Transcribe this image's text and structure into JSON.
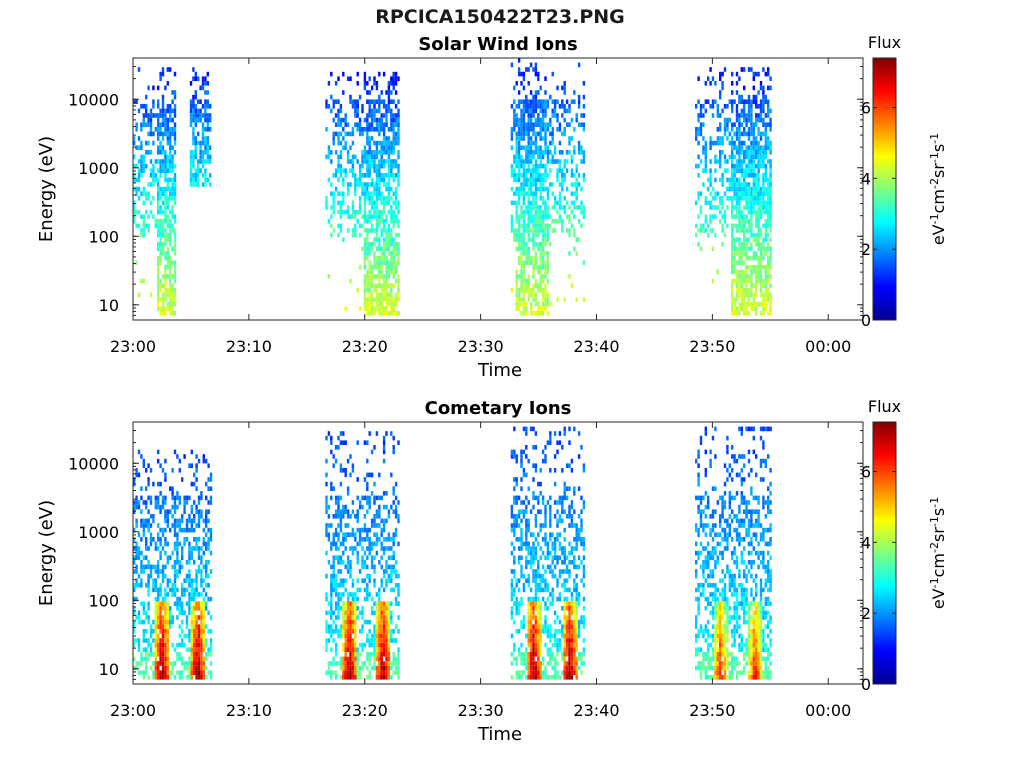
{
  "title": "RPCICA150422T23.PNG",
  "panels": [
    {
      "subtitle": "Solar Wind Ions",
      "xlabel": "Time",
      "ylabel": "Energy (eV)"
    },
    {
      "subtitle": "Cometary Ions",
      "xlabel": "Time",
      "ylabel": "Energy (eV)"
    }
  ],
  "colorbar": {
    "label": "Flux",
    "unit_text": "eV-1cm-2sr-1s-1",
    "ticks": [
      "0",
      "2",
      "4",
      "6"
    ],
    "range": [
      0,
      7.4
    ],
    "colormap": [
      "#00008f",
      "#0000ff",
      "#00ffff",
      "#ffff00",
      "#ff0000",
      "#800000"
    ]
  },
  "chart_data": [
    {
      "type": "heatmap",
      "title": "Solar Wind Ions",
      "xlabel": "Time",
      "ylabel": "Energy (eV)",
      "xlim": [
        "23:00",
        "00:03"
      ],
      "xticks": [
        "23:00",
        "23:10",
        "23:20",
        "23:30",
        "23:40",
        "23:50",
        "00:00"
      ],
      "ylim": [
        6,
        40000
      ],
      "yscale": "log",
      "yticks": [
        "10",
        "100",
        "1000",
        "10000"
      ],
      "grid": false,
      "note": "Energy-time spectrogram; four ion bursts around 23:00-23:07, 23:17-23:23, 23:33-23:39, 23:48-23:55",
      "bursts": [
        {
          "start_min": 0.0,
          "end_min": 3.7,
          "emin": 6,
          "emax": 30000,
          "core_start_min": 2.0,
          "core_end_min": 3.6,
          "peak_flux": 4
        },
        {
          "start_min": 4.9,
          "end_min": 6.7,
          "emin": 500,
          "emax": 30000,
          "core_start_min": 4.9,
          "core_end_min": 6.7,
          "peak_flux": 2
        },
        {
          "start_min": 16.6,
          "end_min": 23.0,
          "emin": 6,
          "emax": 25000,
          "core_start_min": 19.9,
          "core_end_min": 22.9,
          "peak_flux": 4
        },
        {
          "start_min": 32.6,
          "end_min": 38.9,
          "emin": 6,
          "emax": 38000,
          "core_start_min": 33.0,
          "core_end_min": 35.8,
          "peak_flux": 4
        },
        {
          "start_min": 48.5,
          "end_min": 55.1,
          "emin": 6,
          "emax": 30000,
          "core_start_min": 51.5,
          "core_end_min": 55.0,
          "peak_flux": 4
        }
      ]
    },
    {
      "type": "heatmap",
      "title": "Cometary Ions",
      "xlabel": "Time",
      "ylabel": "Energy (eV)",
      "xlim": [
        "23:00",
        "00:03"
      ],
      "xticks": [
        "23:00",
        "23:10",
        "23:20",
        "23:30",
        "23:40",
        "23:50",
        "00:00"
      ],
      "ylim": [
        6,
        40000
      ],
      "yscale": "log",
      "yticks": [
        "10",
        "100",
        "1000",
        "10000"
      ],
      "grid": false,
      "note": "Energy-time spectrogram; strong low-energy (<100 eV) vertical streaks within each burst",
      "bursts": [
        {
          "start_min": 0.0,
          "end_min": 6.7,
          "emin": 6,
          "emax": 15000,
          "peaks_min": [
            2.4,
            5.5
          ],
          "peak_flux": 7
        },
        {
          "start_min": 16.6,
          "end_min": 23.0,
          "emin": 6,
          "emax": 30000,
          "peaks_min": [
            18.6,
            21.5
          ],
          "peak_flux": 7
        },
        {
          "start_min": 32.6,
          "end_min": 38.9,
          "emin": 6,
          "emax": 36000,
          "peaks_min": [
            34.5,
            37.6
          ],
          "peak_flux": 7
        },
        {
          "start_min": 48.5,
          "end_min": 55.1,
          "emin": 6,
          "emax": 34000,
          "peaks_min": [
            50.6,
            53.6
          ],
          "peak_flux": 6
        }
      ]
    }
  ]
}
